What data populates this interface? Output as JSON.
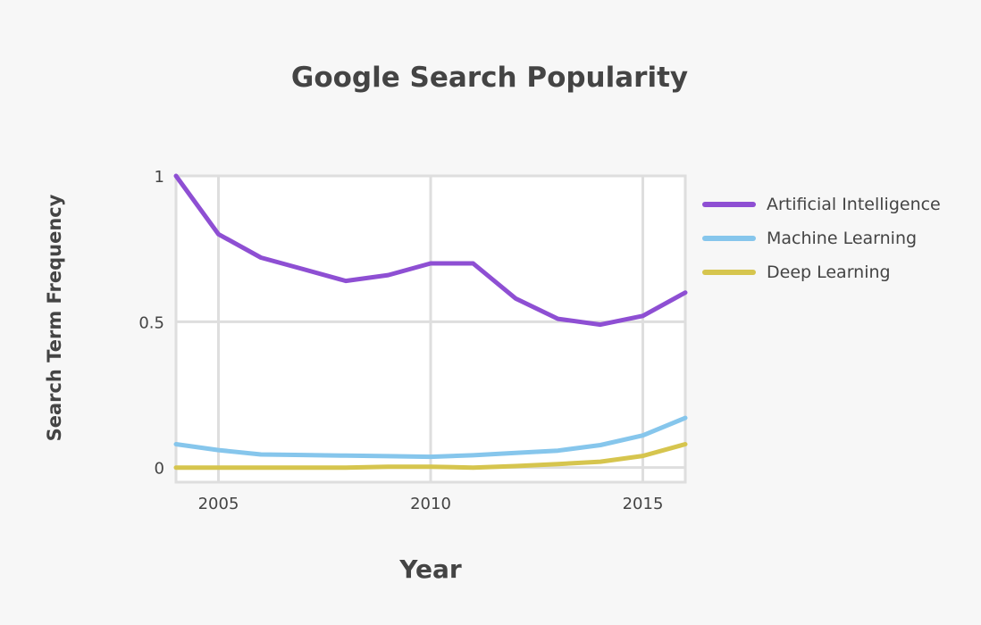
{
  "chart_data": {
    "type": "line",
    "title": "Google Search Popularity",
    "xlabel": "Year",
    "ylabel": "Search Term Frequency",
    "x": [
      2004,
      2005,
      2006,
      2007,
      2008,
      2009,
      2010,
      2011,
      2012,
      2013,
      2014,
      2015,
      2016
    ],
    "xlim": [
      2004,
      2016
    ],
    "ylim": [
      -0.05,
      1.0
    ],
    "xticks": [
      2005,
      2010,
      2015
    ],
    "xtick_labels": [
      "2005",
      "2010",
      "2015"
    ],
    "yticks": [
      0,
      0.5,
      1
    ],
    "ytick_labels": [
      "0",
      "0.5",
      "1"
    ],
    "grid": true,
    "legend_position": "right",
    "series": [
      {
        "name": "Artificial Intelligence",
        "color": "#8e4fd3",
        "values": [
          1.0,
          0.8,
          0.72,
          0.68,
          0.64,
          0.66,
          0.7,
          0.7,
          0.58,
          0.51,
          0.49,
          0.52,
          0.6
        ]
      },
      {
        "name": "Machine Learning",
        "color": "#86c6ec",
        "values": [
          0.08,
          0.06,
          0.045,
          0.043,
          0.041,
          0.039,
          0.037,
          0.042,
          0.05,
          0.058,
          0.077,
          0.11,
          0.17
        ]
      },
      {
        "name": "Deep Learning",
        "color": "#d6c54e",
        "values": [
          0.0,
          0.0,
          0.0,
          0.0,
          0.0,
          0.003,
          0.003,
          0.0,
          0.005,
          0.012,
          0.02,
          0.04,
          0.08
        ]
      }
    ]
  }
}
